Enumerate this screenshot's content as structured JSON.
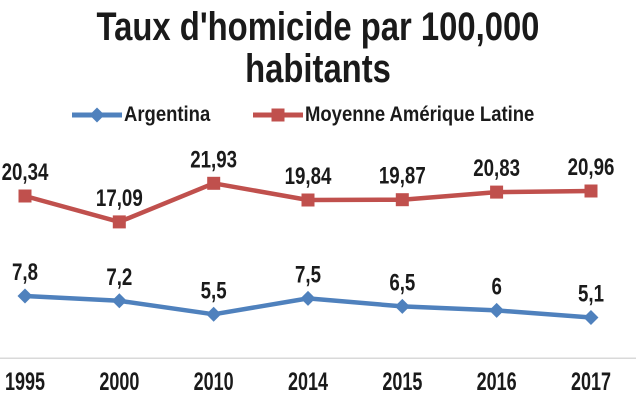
{
  "title": "Taux d'homicide par 100,000 habitants",
  "colors": {
    "argentina_blue": "#4F81BD",
    "latam_red": "#C0504D",
    "text": "#1A1A1A",
    "axis_line": "#D9D9D9",
    "background": "#FFFFFF"
  },
  "legend": {
    "position": "top",
    "items": [
      {
        "label": "Argentina",
        "marker": "diamond",
        "color": "#4F81BD"
      },
      {
        "label": "Moyenne Amérique Latine",
        "marker": "square",
        "color": "#C0504D"
      }
    ]
  },
  "chart_data": {
    "type": "line",
    "title": "Taux d'homicide par 100,000 habitants",
    "categories": [
      "1995",
      "2000",
      "2010",
      "2014",
      "2015",
      "2016",
      "2017"
    ],
    "series": [
      {
        "name": "Argentina",
        "color": "#4F81BD",
        "marker": "diamond",
        "values": [
          7.8,
          7.2,
          5.5,
          7.5,
          6.5,
          6,
          5.1
        ],
        "labels": [
          "7,8",
          "7,2",
          "5,5",
          "7,5",
          "6,5",
          "6",
          "5,1"
        ]
      },
      {
        "name": "Moyenne Amérique Latine",
        "color": "#C0504D",
        "marker": "square",
        "values": [
          20.34,
          17.09,
          21.93,
          19.84,
          19.87,
          20.83,
          20.96
        ],
        "labels": [
          "20,34",
          "17,09",
          "21,93",
          "19,84",
          "19,87",
          "20,83",
          "20,96"
        ]
      }
    ],
    "xlabel": "",
    "ylabel": "",
    "ylim": [
      0,
      27
    ],
    "grid": false,
    "y_axis_visible": false,
    "data_labels": true,
    "legend_position": "top"
  }
}
